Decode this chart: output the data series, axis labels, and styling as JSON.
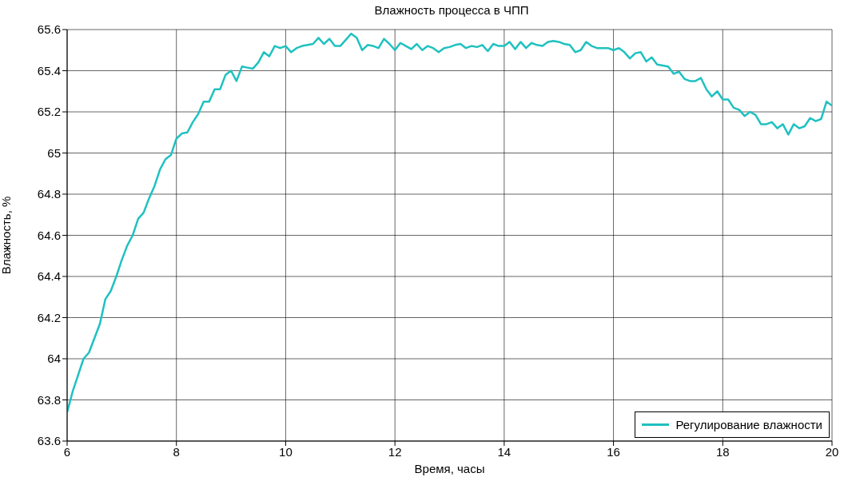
{
  "chart_data": {
    "type": "line",
    "title": "Влажность процесса в ЧПП",
    "xlabel": "Время, часы",
    "ylabel": "Влажность, %",
    "xlim": [
      6,
      20
    ],
    "xticks": [
      6,
      8,
      10,
      12,
      14,
      16,
      18,
      20
    ],
    "ylim": [
      63.6,
      65.6
    ],
    "yticks": [
      63.6,
      63.8,
      64,
      64.2,
      64.4,
      64.6,
      64.8,
      65,
      65.2,
      65.4,
      65.6
    ],
    "grid": true,
    "legend": "bottom right",
    "marker": "none",
    "line_style": "solid",
    "x": [
      6.0,
      6.1,
      6.2,
      6.3,
      6.4,
      6.5,
      6.6,
      6.7,
      6.8,
      6.9,
      7.0,
      7.1,
      7.2,
      7.3,
      7.4,
      7.5,
      7.6,
      7.7,
      7.8,
      7.9,
      8.0,
      8.1,
      8.2,
      8.3,
      8.4,
      8.5,
      8.6,
      8.7,
      8.8,
      8.9,
      9.0,
      9.1,
      9.2,
      9.3,
      9.4,
      9.5,
      9.6,
      9.7,
      9.8,
      9.9,
      10.0,
      10.1,
      10.2,
      10.3,
      10.4,
      10.5,
      10.6,
      10.7,
      10.8,
      10.9,
      11.0,
      11.1,
      11.2,
      11.3,
      11.4,
      11.5,
      11.6,
      11.7,
      11.8,
      11.9,
      12.0,
      12.1,
      12.2,
      12.3,
      12.4,
      12.5,
      12.6,
      12.7,
      12.8,
      12.9,
      13.0,
      13.1,
      13.2,
      13.3,
      13.4,
      13.5,
      13.6,
      13.7,
      13.8,
      13.9,
      14.0,
      14.1,
      14.2,
      14.3,
      14.4,
      14.5,
      14.6,
      14.7,
      14.8,
      14.9,
      15.0,
      15.1,
      15.2,
      15.3,
      15.4,
      15.5,
      15.6,
      15.7,
      15.8,
      15.9,
      16.0,
      16.1,
      16.2,
      16.3,
      16.4,
      16.5,
      16.6,
      16.7,
      16.8,
      16.9,
      17.0,
      17.1,
      17.2,
      17.3,
      17.4,
      17.5,
      17.6,
      17.7,
      17.8,
      17.9,
      18.0,
      18.1,
      18.2,
      18.3,
      18.4,
      18.5,
      18.6,
      18.7,
      18.8,
      18.9,
      19.0,
      19.1,
      19.2,
      19.3,
      19.4,
      19.5,
      19.6,
      19.7,
      19.8,
      19.9,
      20.0
    ],
    "series": [
      {
        "name": "Регулирование влажности",
        "color": "#1fc1c0",
        "values": [
          63.74,
          63.84,
          63.92,
          64.0,
          64.03,
          64.1,
          64.17,
          64.29,
          64.33,
          64.4,
          64.48,
          64.55,
          64.6,
          64.68,
          64.71,
          64.78,
          64.84,
          64.92,
          64.97,
          64.99,
          65.07,
          65.095,
          65.1,
          65.15,
          65.19,
          65.25,
          65.25,
          65.31,
          65.31,
          65.38,
          65.4,
          65.35,
          65.42,
          65.415,
          65.41,
          65.44,
          65.49,
          65.47,
          65.52,
          65.51,
          65.52,
          65.49,
          65.51,
          65.52,
          65.525,
          65.53,
          65.56,
          65.53,
          65.555,
          65.52,
          65.52,
          65.55,
          65.58,
          65.56,
          65.5,
          65.525,
          65.52,
          65.51,
          65.555,
          65.53,
          65.5,
          65.535,
          65.52,
          65.505,
          65.53,
          65.5,
          65.52,
          65.51,
          65.49,
          65.51,
          65.515,
          65.525,
          65.53,
          65.51,
          65.52,
          65.515,
          65.525,
          65.495,
          65.53,
          65.52,
          65.52,
          65.54,
          65.505,
          65.54,
          65.51,
          65.535,
          65.525,
          65.52,
          65.54,
          65.545,
          65.54,
          65.53,
          65.525,
          65.49,
          65.5,
          65.54,
          65.52,
          65.51,
          65.51,
          65.51,
          65.5,
          65.51,
          65.49,
          65.46,
          65.485,
          65.49,
          65.445,
          65.465,
          65.43,
          65.425,
          65.42,
          65.385,
          65.395,
          65.36,
          65.35,
          65.35,
          65.365,
          65.31,
          65.275,
          65.3,
          65.26,
          65.26,
          65.22,
          65.21,
          65.18,
          65.2,
          65.185,
          65.14,
          65.14,
          65.15,
          65.12,
          65.14,
          65.09,
          65.14,
          65.12,
          65.13,
          65.17,
          65.155,
          65.165,
          65.25,
          65.23
        ]
      }
    ]
  }
}
